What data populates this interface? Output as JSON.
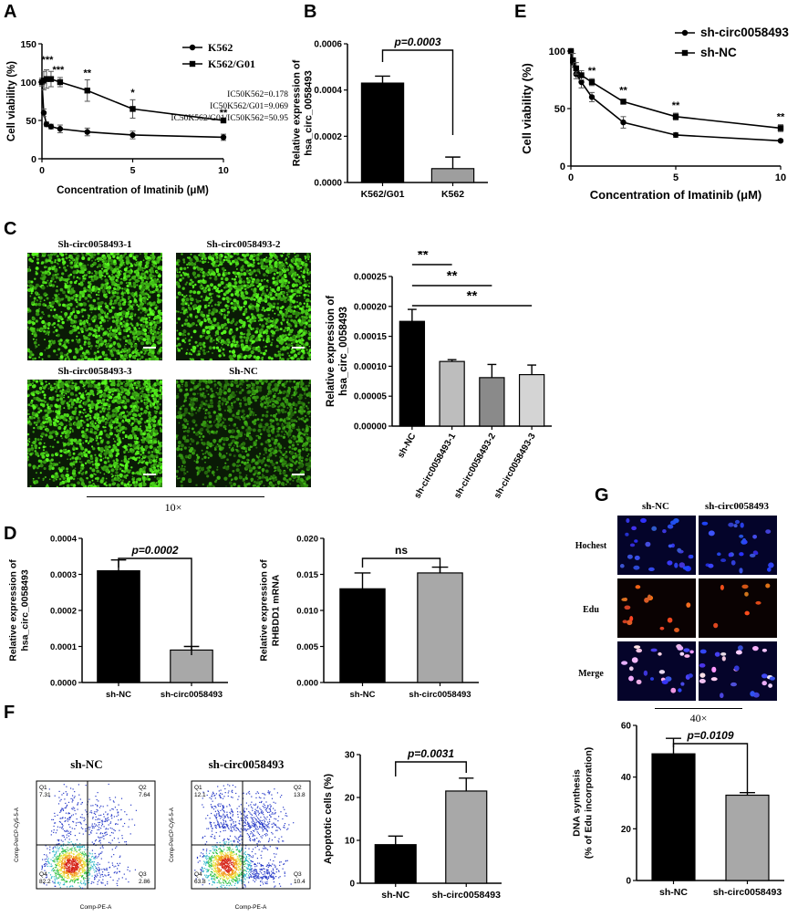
{
  "panels": {
    "A": {
      "label": "A",
      "chart_data": {
        "type": "line",
        "xlabel": "Concentration of Imatinib (μM)",
        "ylabel": "Cell viability (%)",
        "xlim": [
          0,
          10
        ],
        "ylim": [
          0,
          150
        ],
        "xticks": [
          "0",
          "5",
          "10"
        ],
        "yticks": [
          "0",
          "50",
          "100",
          "150"
        ],
        "legend_position": "top-right",
        "series": [
          {
            "name": "K562",
            "marker": "circle",
            "x": [
              0,
              0.1,
              0.25,
              0.5,
              1,
              2.5,
              5,
              10
            ],
            "y": [
              100,
              60,
              45,
              42,
              39,
              35,
              31,
              28
            ],
            "err": [
              2,
              5,
              3,
              3,
              5,
              5,
              5,
              4
            ]
          },
          {
            "name": "K562/G01",
            "marker": "square",
            "x": [
              0,
              0.1,
              0.25,
              0.5,
              1,
              2.5,
              5,
              10
            ],
            "y": [
              100,
              102,
              104,
              104,
              100,
              89,
              65,
              50
            ],
            "err": [
              5,
              12,
              12,
              10,
              6,
              14,
              12,
              3
            ]
          }
        ],
        "annotations": [
          {
            "x": 0.3,
            "y": 125,
            "text": "***"
          },
          {
            "x": 0.9,
            "y": 112,
            "text": "***"
          },
          {
            "x": 2.5,
            "y": 108,
            "text": "**"
          },
          {
            "x": 5,
            "y": 82,
            "text": "*"
          },
          {
            "x": 10,
            "y": 56,
            "text": "**"
          }
        ],
        "ic50_notes": [
          "IC50K562=0.178",
          "IC50K562/G01=9.069",
          "IC50K562/G01/IC50K562=50.95"
        ]
      }
    },
    "B": {
      "label": "B",
      "chart_data": {
        "type": "bar",
        "categories": [
          "K562/G01",
          "K562"
        ],
        "values": [
          0.00043,
          6e-05
        ],
        "err": [
          3e-05,
          5e-05
        ],
        "colors": [
          "#000000",
          "#9e9e9e"
        ],
        "ylabel": "Relative  expression of\nhsa_circ_0058493",
        "ylim": [
          0,
          0.0006
        ],
        "yticks": [
          "0.0000",
          "0.0002",
          "0.0004",
          "0.0006"
        ],
        "sig": [
          {
            "from": 0,
            "to": 1,
            "text": "p=0.0003"
          }
        ]
      }
    },
    "C": {
      "label": "C",
      "micro_labels": [
        "Sh-circ0058493-1",
        "Sh-circ0058493-2",
        "Sh-circ0058493-3",
        "Sh-NC"
      ],
      "magnification": "10×",
      "chart_data": {
        "type": "bar",
        "categories": [
          "sh-NC",
          "sh-circ0058493-1",
          "sh-circ0058493-2",
          "sh-circ0058493-3"
        ],
        "values": [
          0.000175,
          0.000108,
          8.1e-05,
          8.6e-05
        ],
        "err": [
          2e-05,
          3e-06,
          2.2e-05,
          1.6e-05
        ],
        "colors": [
          "#000000",
          "#bdbdbd",
          "#8a8a8a",
          "#d4d4d4"
        ],
        "ylabel": "Relative expression of\nhsa_circ_0058493",
        "ylim": [
          0,
          0.00025
        ],
        "yticks": [
          "0.00000",
          "0.00005",
          "0.00010",
          "0.00015",
          "0.00020",
          "0.00025"
        ],
        "sig": [
          {
            "from": 0,
            "to": 1,
            "text": "**"
          },
          {
            "from": 0,
            "to": 2,
            "text": "**"
          },
          {
            "from": 0,
            "to": 3,
            "text": "**"
          }
        ]
      }
    },
    "D1": {
      "label": "D",
      "chart_data": {
        "type": "bar",
        "categories": [
          "sh-NC",
          "sh-circ0058493"
        ],
        "values": [
          0.00031,
          9e-05
        ],
        "err": [
          3e-05,
          1e-05
        ],
        "colors": [
          "#000000",
          "#a8a8a8"
        ],
        "ylabel": "Relative expression of\nhsa_circ_0058493",
        "ylim": [
          0,
          0.0004
        ],
        "yticks": [
          "0.0000",
          "0.0001",
          "0.0002",
          "0.0003",
          "0.0004"
        ],
        "sig": [
          {
            "from": 0,
            "to": 1,
            "text": "p=0.0002"
          }
        ]
      }
    },
    "D2": {
      "chart_data": {
        "type": "bar",
        "categories": [
          "sh-NC",
          "sh-circ0058493"
        ],
        "values": [
          0.013,
          0.0152
        ],
        "err": [
          0.0022,
          0.0008
        ],
        "colors": [
          "#000000",
          "#a8a8a8"
        ],
        "ylabel": "Relative expression of\nRHBDD1 mRNA",
        "ylim": [
          0,
          0.02
        ],
        "yticks": [
          "0.000",
          "0.005",
          "0.010",
          "0.015",
          "0.020"
        ],
        "sig": [
          {
            "from": 0,
            "to": 1,
            "text": "ns"
          }
        ]
      }
    },
    "E": {
      "label": "E",
      "chart_data": {
        "type": "line",
        "xlabel": "Concentration of Imatinib (μM)",
        "ylabel": "Cell viability (%)",
        "xlim": [
          0,
          10
        ],
        "ylim": [
          0,
          100
        ],
        "xticks": [
          "0",
          "5",
          "10"
        ],
        "yticks": [
          "0",
          "50",
          "100"
        ],
        "legend_position": "top-right",
        "series": [
          {
            "name": "sh-circ0058493",
            "marker": "circle",
            "x": [
              0,
              0.1,
              0.25,
              0.5,
              1,
              2.5,
              5,
              10
            ],
            "y": [
              100,
              90,
              80,
              73,
              60,
              38,
              27,
              22
            ],
            "err": [
              2,
              4,
              4,
              5,
              4,
              5,
              2,
              1
            ]
          },
          {
            "name": "sh-NC",
            "marker": "square",
            "x": [
              0,
              0.1,
              0.25,
              0.5,
              1,
              2.5,
              5,
              10
            ],
            "y": [
              100,
              92,
              85,
              79,
              73,
              56,
              43,
              33
            ],
            "err": [
              2,
              6,
              5,
              4,
              3,
              2,
              3,
              3
            ]
          }
        ],
        "annotations": [
          {
            "x": 1,
            "y": 80,
            "text": "**"
          },
          {
            "x": 2.5,
            "y": 63,
            "text": "**"
          },
          {
            "x": 5,
            "y": 50,
            "text": "**"
          },
          {
            "x": 10,
            "y": 40,
            "text": "**"
          }
        ]
      }
    },
    "F": {
      "label": "F",
      "flow": [
        {
          "title": "sh-NC",
          "quadrants": [
            "Q1\n7.31",
            "Q2\n7.64",
            "Q4\n82.2",
            "Q3\n2.86"
          ]
        },
        {
          "title": "sh-circ0058493",
          "quadrants": [
            "Q1\n12.1",
            "Q2\n13.8",
            "Q4\n63.8",
            "Q3\n10.4"
          ]
        }
      ],
      "flow_xlabel": "Comp-PE-A",
      "flow_ylabel": "Comp-PerCP-Cy5-5-A",
      "chart_data": {
        "type": "bar",
        "categories": [
          "sh-NC",
          "sh-circ0058493"
        ],
        "values": [
          9,
          21.5
        ],
        "err": [
          2,
          3
        ],
        "colors": [
          "#000000",
          "#a8a8a8"
        ],
        "ylabel": "Apoptotic cells (%)",
        "ylim": [
          0,
          30
        ],
        "yticks": [
          "0",
          "10",
          "20",
          "30"
        ],
        "sig": [
          {
            "from": 0,
            "to": 1,
            "text": "p=0.0031"
          }
        ]
      }
    },
    "G": {
      "label": "G",
      "columns": [
        "sh-NC",
        "sh-circ0058493"
      ],
      "rows": [
        "Hochest",
        "Edu",
        "Merge"
      ],
      "magnification": "40×",
      "chart_data": {
        "type": "bar",
        "categories": [
          "sh-NC",
          "sh-circ0058493"
        ],
        "values": [
          49,
          33
        ],
        "err": [
          6,
          1
        ],
        "colors": [
          "#000000",
          "#a8a8a8"
        ],
        "ylabel": "DNA synthesis\n(% of Edu incorporation)",
        "ylim": [
          0,
          60
        ],
        "yticks": [
          "0",
          "20",
          "40",
          "60"
        ],
        "sig": [
          {
            "from": 0,
            "to": 1,
            "text": "p=0.0109"
          }
        ]
      }
    }
  }
}
